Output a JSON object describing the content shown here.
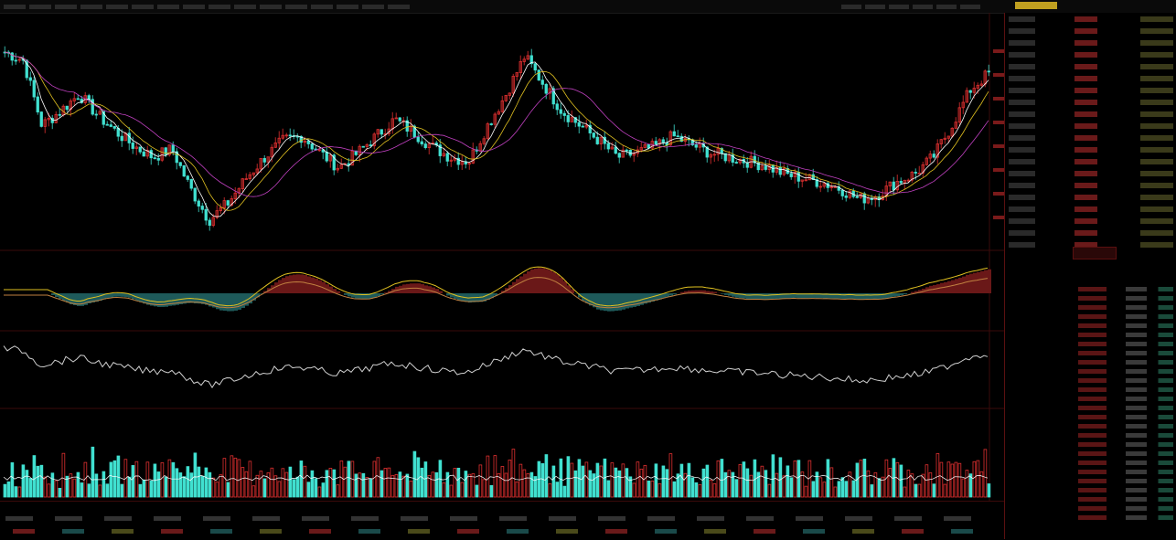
{
  "colors": {
    "up": "#e03030",
    "down": "#40e0d0",
    "ma1": "#ffffff",
    "ma2": "#e0c020",
    "ma3": "#c040c0",
    "grid": "#3a0a0a"
  },
  "topbar": {
    "left_items": [
      "",
      "",
      "",
      "",
      "",
      "",
      "",
      "",
      "",
      "",
      "",
      "",
      "",
      "",
      "",
      ""
    ],
    "right_items": [
      "",
      "",
      "",
      "",
      "",
      ""
    ]
  },
  "panels": {
    "main_title": "",
    "macd_title": "",
    "mid_title": "",
    "vol_title": ""
  },
  "price_chart": {
    "type": "candlestick",
    "trend": [
      0.9,
      0.86,
      0.55,
      0.62,
      0.7,
      0.6,
      0.52,
      0.45,
      0.4,
      0.44,
      0.25,
      0.1,
      0.18,
      0.3,
      0.4,
      0.48,
      0.5,
      0.42,
      0.35,
      0.42,
      0.5,
      0.58,
      0.52,
      0.45,
      0.4,
      0.38,
      0.55,
      0.7,
      0.88,
      0.75,
      0.62,
      0.55,
      0.48,
      0.4,
      0.42,
      0.45,
      0.5,
      0.46,
      0.42,
      0.4,
      0.38,
      0.36,
      0.32,
      0.3,
      0.28,
      0.25,
      0.2,
      0.22,
      0.28,
      0.32,
      0.4,
      0.55,
      0.72,
      0.8
    ]
  },
  "side": {
    "quote_rows": 20,
    "order_rows": 26
  },
  "bottom": {
    "row1": [
      "",
      "",
      "",
      "",
      "",
      "",
      "",
      "",
      "",
      "",
      "",
      "",
      "",
      "",
      "",
      "",
      "",
      "",
      "",
      ""
    ],
    "row2": [
      "",
      "",
      "",
      "",
      "",
      "",
      "",
      "",
      "",
      "",
      "",
      "",
      "",
      "",
      "",
      "",
      "",
      "",
      "",
      ""
    ]
  }
}
